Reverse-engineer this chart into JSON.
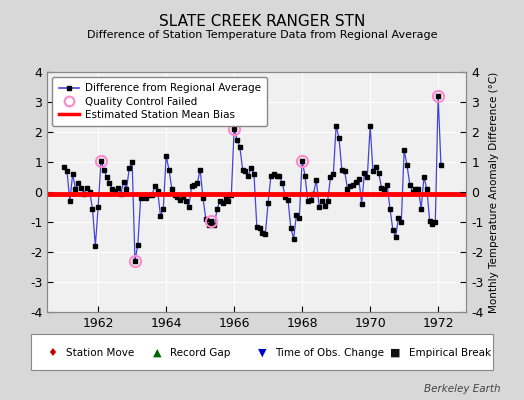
{
  "title": "SLATE CREEK RANGER STN",
  "subtitle": "Difference of Station Temperature Data from Regional Average",
  "ylabel_right": "Monthly Temperature Anomaly Difference (°C)",
  "credit": "Berkeley Earth",
  "bias": -0.07,
  "ylim": [
    -4,
    4
  ],
  "xlim": [
    1960.5,
    1972.83
  ],
  "xticks": [
    1962,
    1964,
    1966,
    1968,
    1970,
    1972
  ],
  "xtick_labels": [
    "1962",
    "1964",
    "1966",
    "1968",
    "1970",
    "1972"
  ],
  "yticks": [
    -4,
    -3,
    -2,
    -1,
    0,
    1,
    2,
    3,
    4
  ],
  "background_color": "#d8d8d8",
  "plot_bg_color": "#f0f0f0",
  "line_color": "#4444dd",
  "marker_color": "#000000",
  "bias_color": "#ff0000",
  "qc_color": "#ff88cc",
  "data": [
    [
      1961.0,
      0.85
    ],
    [
      1961.083,
      0.7
    ],
    [
      1961.167,
      -0.3
    ],
    [
      1961.25,
      0.6
    ],
    [
      1961.333,
      0.1
    ],
    [
      1961.417,
      0.3
    ],
    [
      1961.5,
      0.15
    ],
    [
      1961.583,
      -0.05
    ],
    [
      1961.667,
      0.15
    ],
    [
      1961.75,
      0.0
    ],
    [
      1961.833,
      -0.55
    ],
    [
      1961.917,
      -1.8
    ],
    [
      1962.0,
      -0.5
    ],
    [
      1962.083,
      1.05
    ],
    [
      1962.167,
      0.75
    ],
    [
      1962.25,
      0.5
    ],
    [
      1962.333,
      0.3
    ],
    [
      1962.417,
      0.1
    ],
    [
      1962.5,
      0.05
    ],
    [
      1962.583,
      0.15
    ],
    [
      1962.667,
      -0.05
    ],
    [
      1962.75,
      0.35
    ],
    [
      1962.833,
      0.1
    ],
    [
      1962.917,
      0.8
    ],
    [
      1963.0,
      1.0
    ],
    [
      1963.083,
      -2.3
    ],
    [
      1963.167,
      -1.75
    ],
    [
      1963.25,
      -0.2
    ],
    [
      1963.333,
      -0.15
    ],
    [
      1963.417,
      -0.2
    ],
    [
      1963.5,
      -0.1
    ],
    [
      1963.583,
      -0.1
    ],
    [
      1963.667,
      0.2
    ],
    [
      1963.75,
      0.05
    ],
    [
      1963.833,
      -0.8
    ],
    [
      1963.917,
      -0.55
    ],
    [
      1964.0,
      1.2
    ],
    [
      1964.083,
      0.75
    ],
    [
      1964.167,
      0.1
    ],
    [
      1964.25,
      -0.1
    ],
    [
      1964.333,
      -0.15
    ],
    [
      1964.417,
      -0.25
    ],
    [
      1964.5,
      -0.15
    ],
    [
      1964.583,
      -0.3
    ],
    [
      1964.667,
      -0.5
    ],
    [
      1964.75,
      0.2
    ],
    [
      1964.833,
      0.25
    ],
    [
      1964.917,
      0.3
    ],
    [
      1965.0,
      0.75
    ],
    [
      1965.083,
      -0.2
    ],
    [
      1965.167,
      -0.9
    ],
    [
      1965.25,
      -1.1
    ],
    [
      1965.333,
      -0.95
    ],
    [
      1965.417,
      -1.1
    ],
    [
      1965.5,
      -0.55
    ],
    [
      1965.583,
      -0.3
    ],
    [
      1965.667,
      -0.35
    ],
    [
      1965.75,
      -0.2
    ],
    [
      1965.833,
      -0.3
    ],
    [
      1965.917,
      -0.1
    ],
    [
      1966.0,
      2.1
    ],
    [
      1966.083,
      1.75
    ],
    [
      1966.167,
      1.5
    ],
    [
      1966.25,
      0.75
    ],
    [
      1966.333,
      0.7
    ],
    [
      1966.417,
      0.55
    ],
    [
      1966.5,
      0.8
    ],
    [
      1966.583,
      0.6
    ],
    [
      1966.667,
      -1.15
    ],
    [
      1966.75,
      -1.2
    ],
    [
      1966.833,
      -1.35
    ],
    [
      1966.917,
      -1.4
    ],
    [
      1967.0,
      -0.35
    ],
    [
      1967.083,
      0.55
    ],
    [
      1967.167,
      0.6
    ],
    [
      1967.25,
      0.55
    ],
    [
      1967.333,
      0.55
    ],
    [
      1967.417,
      0.3
    ],
    [
      1967.5,
      -0.15
    ],
    [
      1967.583,
      -0.25
    ],
    [
      1967.667,
      -1.2
    ],
    [
      1967.75,
      -1.55
    ],
    [
      1967.833,
      -0.75
    ],
    [
      1967.917,
      -0.85
    ],
    [
      1968.0,
      1.05
    ],
    [
      1968.083,
      0.55
    ],
    [
      1968.167,
      -0.3
    ],
    [
      1968.25,
      -0.25
    ],
    [
      1968.333,
      -0.05
    ],
    [
      1968.417,
      0.4
    ],
    [
      1968.5,
      -0.5
    ],
    [
      1968.583,
      -0.3
    ],
    [
      1968.667,
      -0.45
    ],
    [
      1968.75,
      -0.3
    ],
    [
      1968.833,
      0.5
    ],
    [
      1968.917,
      0.6
    ],
    [
      1969.0,
      2.2
    ],
    [
      1969.083,
      1.8
    ],
    [
      1969.167,
      0.75
    ],
    [
      1969.25,
      0.7
    ],
    [
      1969.333,
      0.1
    ],
    [
      1969.417,
      0.2
    ],
    [
      1969.5,
      0.25
    ],
    [
      1969.583,
      0.35
    ],
    [
      1969.667,
      0.45
    ],
    [
      1969.75,
      -0.4
    ],
    [
      1969.833,
      0.65
    ],
    [
      1969.917,
      0.5
    ],
    [
      1970.0,
      2.2
    ],
    [
      1970.083,
      0.7
    ],
    [
      1970.167,
      0.85
    ],
    [
      1970.25,
      0.65
    ],
    [
      1970.333,
      0.15
    ],
    [
      1970.417,
      0.1
    ],
    [
      1970.5,
      0.25
    ],
    [
      1970.583,
      -0.55
    ],
    [
      1970.667,
      -1.25
    ],
    [
      1970.75,
      -1.5
    ],
    [
      1970.833,
      -0.85
    ],
    [
      1970.917,
      -1.0
    ],
    [
      1971.0,
      1.4
    ],
    [
      1971.083,
      0.9
    ],
    [
      1971.167,
      0.25
    ],
    [
      1971.25,
      0.0
    ],
    [
      1971.333,
      0.1
    ],
    [
      1971.417,
      0.1
    ],
    [
      1971.5,
      -0.55
    ],
    [
      1971.583,
      0.5
    ],
    [
      1971.667,
      0.1
    ],
    [
      1971.75,
      -0.95
    ],
    [
      1971.833,
      -1.05
    ],
    [
      1971.917,
      -1.0
    ],
    [
      1972.0,
      3.2
    ],
    [
      1972.083,
      0.9
    ]
  ],
  "qc_points": [
    [
      1962.083,
      1.05
    ],
    [
      1963.083,
      -2.3
    ],
    [
      1965.333,
      -0.95
    ],
    [
      1966.0,
      2.1
    ],
    [
      1968.0,
      1.05
    ],
    [
      1972.0,
      3.2
    ]
  ]
}
